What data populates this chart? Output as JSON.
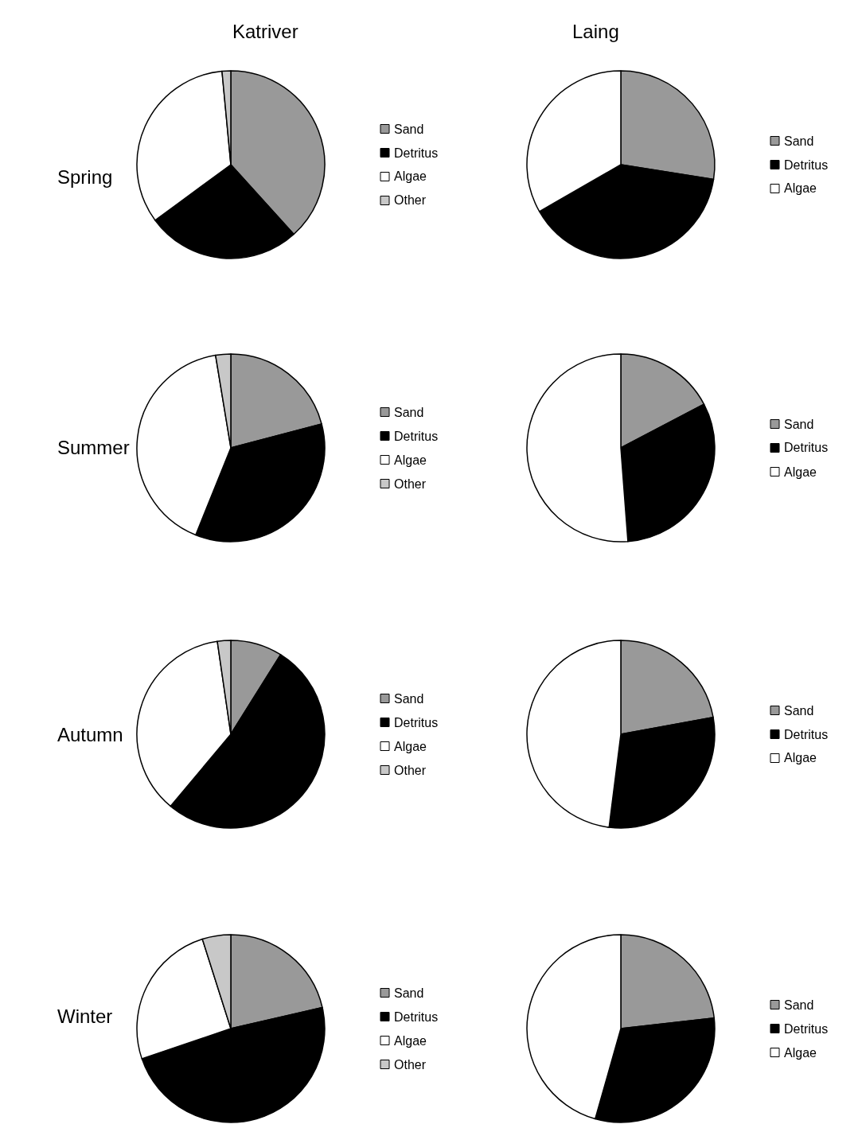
{
  "chart_data": [
    {
      "type": "pie",
      "title": "Katriver",
      "ylabel": "Spring",
      "categories": [
        "Sand",
        "Detritus",
        "Algae",
        "Other"
      ],
      "values": [
        38.3,
        26.6,
        33.6,
        1.5
      ],
      "colors": [
        "#999999",
        "#000000",
        "#ffffff",
        "#c8c8c8"
      ],
      "legend": "right"
    },
    {
      "type": "pie",
      "title": "Laing",
      "categories": [
        "Sand",
        "Detritus",
        "Algae"
      ],
      "values": [
        27.5,
        39.2,
        33.3
      ],
      "colors": [
        "#999999",
        "#000000",
        "#ffffff"
      ],
      "legend": "right"
    },
    {
      "type": "pie",
      "ylabel": "Summer",
      "categories": [
        "Sand",
        "Detritus",
        "Algae",
        "Other"
      ],
      "values": [
        20.9,
        35.2,
        41.3,
        2.6
      ],
      "colors": [
        "#999999",
        "#000000",
        "#ffffff",
        "#c8c8c8"
      ],
      "legend": "right"
    },
    {
      "type": "pie",
      "categories": [
        "Sand",
        "Detritus",
        "Algae"
      ],
      "values": [
        17.3,
        31.5,
        51.2
      ],
      "colors": [
        "#999999",
        "#000000",
        "#ffffff"
      ],
      "legend": "right"
    },
    {
      "type": "pie",
      "ylabel": "Autumn",
      "categories": [
        "Sand",
        "Detritus",
        "Algae",
        "Other"
      ],
      "values": [
        8.9,
        52.2,
        36.6,
        2.3
      ],
      "colors": [
        "#999999",
        "#000000",
        "#ffffff",
        "#c8c8c8"
      ],
      "legend": "right"
    },
    {
      "type": "pie",
      "categories": [
        "Sand",
        "Detritus",
        "Algae"
      ],
      "values": [
        22.1,
        29.9,
        48.0
      ],
      "colors": [
        "#999999",
        "#000000",
        "#ffffff"
      ],
      "legend": "right"
    },
    {
      "type": "pie",
      "ylabel": "Winter",
      "categories": [
        "Sand",
        "Detritus",
        "Algae",
        "Other"
      ],
      "values": [
        21.4,
        48.4,
        25.3,
        4.9
      ],
      "colors": [
        "#999999",
        "#000000",
        "#ffffff",
        "#c8c8c8"
      ],
      "legend": "right"
    },
    {
      "type": "pie",
      "categories": [
        "Sand",
        "Detritus",
        "Algae"
      ],
      "values": [
        23.2,
        31.2,
        45.6
      ],
      "colors": [
        "#999999",
        "#000000",
        "#ffffff"
      ],
      "legend": "right"
    }
  ]
}
